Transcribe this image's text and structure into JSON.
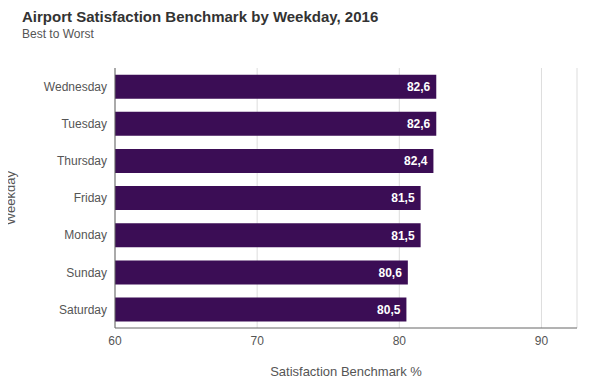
{
  "chart_data": {
    "type": "bar",
    "title": "Airport Satisfaction Benchmark by Weekday, 2016",
    "subtitle": "Best to Worst",
    "x_label": "Satisfaction Benchmark %",
    "y_label": "Weekday",
    "orientation": "horizontal",
    "categories": [
      "Wednesday",
      "Tuesday",
      "Thursday",
      "Friday",
      "Monday",
      "Sunday",
      "Saturday"
    ],
    "values": [
      82.6,
      82.6,
      82.4,
      81.5,
      81.5,
      80.6,
      80.5
    ],
    "value_labels": [
      "82,6",
      "82,6",
      "82,4",
      "81,5",
      "81,5",
      "80,6",
      "80,5"
    ],
    "color": "#3b0d55",
    "xlim": [
      60,
      92.5
    ],
    "xticks": [
      60,
      70,
      80,
      90
    ],
    "grid": true,
    "data_labels": true
  }
}
